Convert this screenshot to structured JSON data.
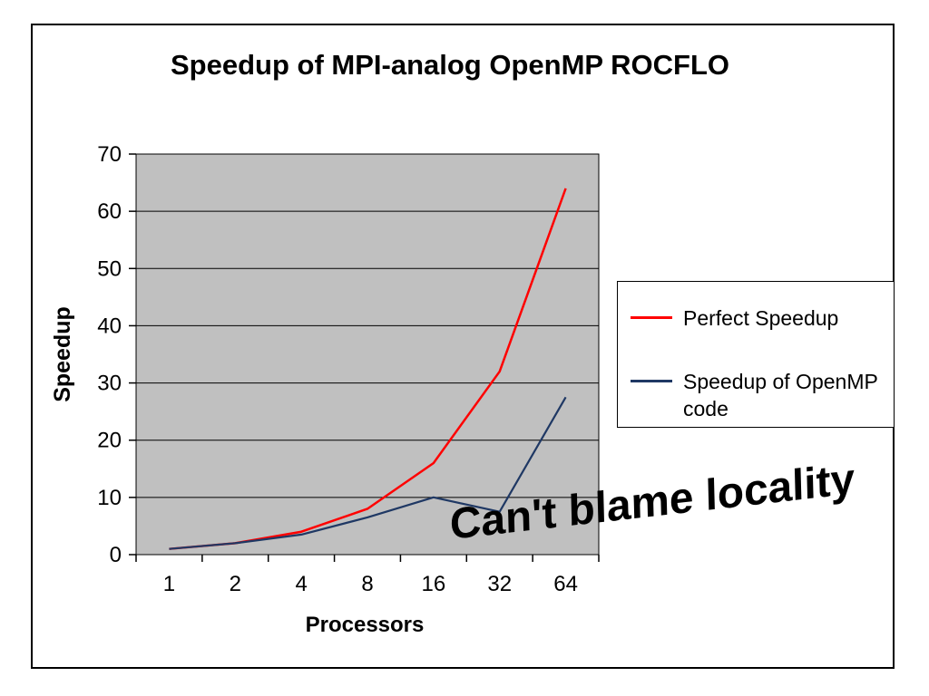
{
  "chart_data": {
    "type": "line",
    "title": "Speedup of MPI-analog OpenMP ROCFLO",
    "xlabel": "Processors",
    "ylabel": "Speedup",
    "categories": [
      "1",
      "2",
      "4",
      "8",
      "16",
      "32",
      "64"
    ],
    "series": [
      {
        "name": "Perfect Speedup",
        "color": "#ff0000",
        "values": [
          1,
          2,
          4,
          8,
          16,
          32,
          64
        ]
      },
      {
        "name": "Speedup of OpenMP code",
        "color": "#1f3864",
        "values": [
          1,
          2,
          3.5,
          6.5,
          10,
          7.5,
          27.5
        ]
      }
    ],
    "ylim": [
      0,
      70
    ],
    "ytick_step": 10,
    "yticks": [
      "0",
      "10",
      "20",
      "30",
      "40",
      "50",
      "60",
      "70"
    ],
    "plot_bg": "#c0c0c0",
    "grid": "horizontal",
    "legend_position": "right"
  },
  "annotation": {
    "text": "Can't blame locality"
  }
}
